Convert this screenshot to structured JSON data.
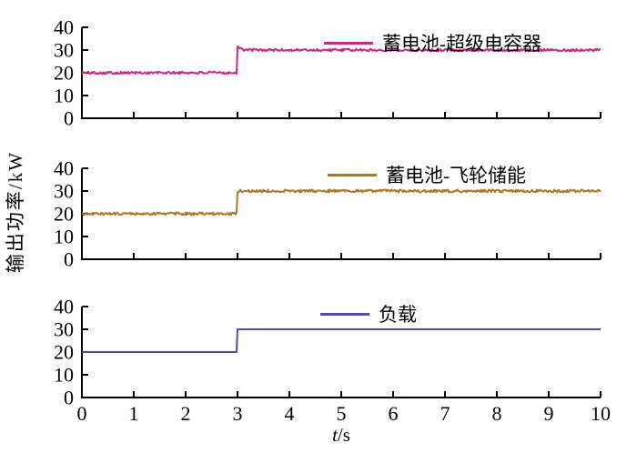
{
  "figure": {
    "ylabel": "输出功率/kW",
    "xlabel_variable": "t",
    "xlabel_unit": "/s",
    "background": "#ffffff",
    "axis_color": "#000000"
  },
  "chart_data": [
    {
      "type": "line",
      "legend": "蓄电池-超级电容器",
      "color": "#c92a87",
      "x": [
        0,
        3,
        3,
        3.12,
        10
      ],
      "y": [
        20,
        20,
        31.8,
        30,
        30
      ],
      "noise_amplitude": 0.55,
      "xlim": [
        0,
        10
      ],
      "ylim": [
        0,
        40
      ],
      "yticks": [
        0,
        10,
        20,
        30,
        40
      ],
      "xticks": [
        0,
        1,
        2,
        3,
        4,
        5,
        6,
        7,
        8,
        9,
        10
      ],
      "show_x_tick_labels": false
    },
    {
      "type": "line",
      "legend": "蓄电池-飞轮储能",
      "color": "#a97a2c",
      "x": [
        0,
        3,
        3,
        10
      ],
      "y": [
        20,
        20,
        30,
        30
      ],
      "noise_amplitude": 0.6,
      "xlim": [
        0,
        10
      ],
      "ylim": [
        0,
        40
      ],
      "yticks": [
        0,
        10,
        20,
        30,
        40
      ],
      "xticks": [
        0,
        1,
        2,
        3,
        4,
        5,
        6,
        7,
        8,
        9,
        10
      ],
      "show_x_tick_labels": false
    },
    {
      "type": "line",
      "legend": "负载",
      "color": "#4e4da3",
      "x": [
        0,
        3,
        3,
        10
      ],
      "y": [
        20,
        20,
        30,
        30
      ],
      "noise_amplitude": 0,
      "xlim": [
        0,
        10
      ],
      "ylim": [
        0,
        40
      ],
      "yticks": [
        0,
        10,
        20,
        30,
        40
      ],
      "xticks": [
        0,
        1,
        2,
        3,
        4,
        5,
        6,
        7,
        8,
        9,
        10
      ],
      "show_x_tick_labels": true
    }
  ]
}
